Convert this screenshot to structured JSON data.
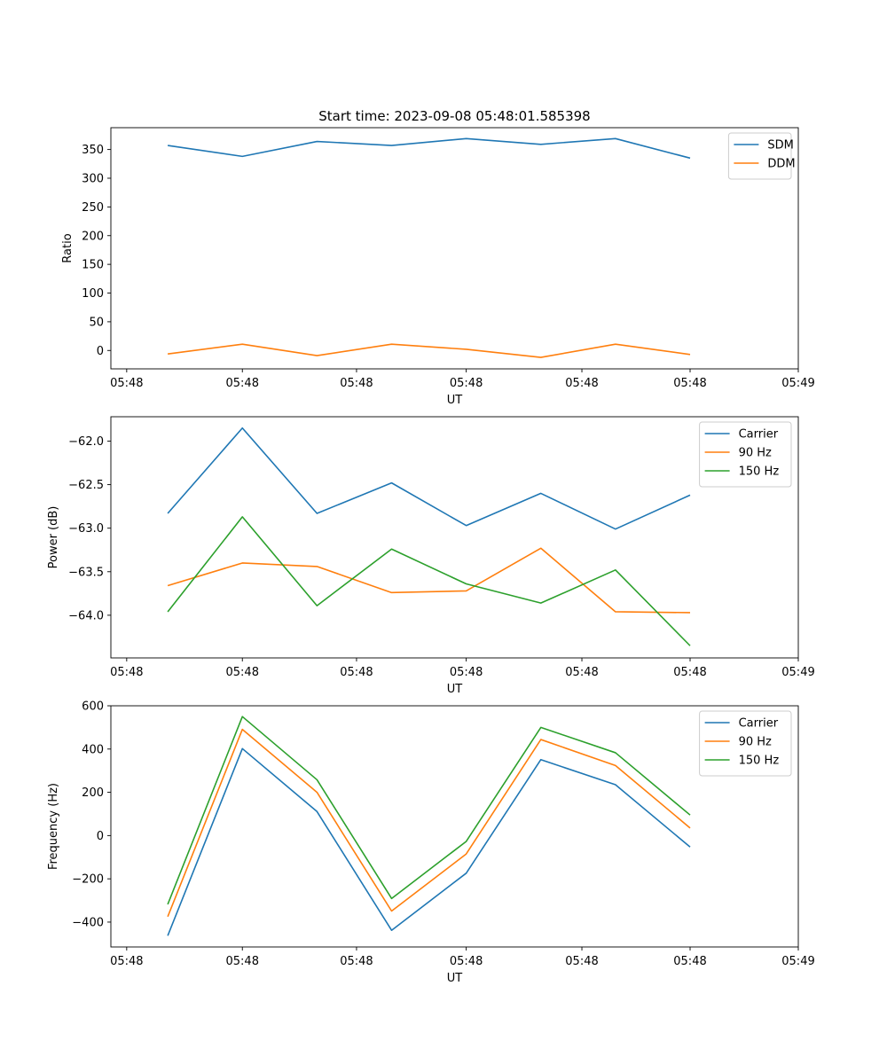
{
  "chart_data": [
    {
      "type": "line",
      "title": "Start time: 2023-09-08 05:48:01.585398",
      "xlabel": "UT",
      "ylabel": "Ratio",
      "x": [
        1,
        2,
        3,
        4,
        5,
        6,
        7,
        8
      ],
      "xlim": [
        0.238,
        9.45
      ],
      "xticks": [
        0.45,
        2,
        3.53,
        5,
        6.55,
        8,
        9.45
      ],
      "xtick_labels": [
        "05:48",
        "05:48",
        "05:48",
        "05:48",
        "05:48",
        "05:48",
        "05:49"
      ],
      "ylim": [
        -32,
        388
      ],
      "yticks": [
        0,
        50,
        100,
        150,
        200,
        250,
        300,
        350
      ],
      "ytick_labels": [
        "0",
        "50",
        "100",
        "150",
        "200",
        "250",
        "300",
        "350"
      ],
      "legend": "top-right",
      "series": [
        {
          "name": "SDM",
          "color": "#1f77b4",
          "values": [
            357,
            338,
            364,
            357,
            369,
            359,
            369,
            335
          ]
        },
        {
          "name": "DDM",
          "color": "#ff7f0e",
          "values": [
            -6,
            11,
            -9,
            11,
            2,
            -12,
            11,
            -7
          ]
        }
      ]
    },
    {
      "type": "line",
      "xlabel": "UT",
      "ylabel": "Power (dB)",
      "x": [
        1,
        2,
        3,
        4,
        5,
        6,
        7,
        8
      ],
      "xlim": [
        0.238,
        9.45
      ],
      "xticks": [
        0.45,
        2,
        3.53,
        5,
        6.55,
        8,
        9.45
      ],
      "xtick_labels": [
        "05:48",
        "05:48",
        "05:48",
        "05:48",
        "05:48",
        "05:48",
        "05:49"
      ],
      "ylim": [
        -64.49,
        -61.72
      ],
      "yticks": [
        -64.0,
        -63.5,
        -63.0,
        -62.5,
        -62.0
      ],
      "ytick_labels": [
        "−64.0",
        "−63.5",
        "−63.0",
        "−62.5",
        "−62.0"
      ],
      "legend": "top-right",
      "series": [
        {
          "name": "Carrier",
          "color": "#1f77b4",
          "values": [
            -62.83,
            -61.85,
            -62.83,
            -62.48,
            -62.97,
            -62.6,
            -63.01,
            -62.62
          ]
        },
        {
          "name": "90 Hz",
          "color": "#ff7f0e",
          "values": [
            -63.66,
            -63.4,
            -63.44,
            -63.74,
            -63.72,
            -63.23,
            -63.96,
            -63.97
          ]
        },
        {
          "name": "150 Hz",
          "color": "#2ca02c",
          "values": [
            -63.96,
            -62.87,
            -63.89,
            -63.24,
            -63.64,
            -63.86,
            -63.48,
            -64.35
          ]
        }
      ]
    },
    {
      "type": "line",
      "xlabel": "UT",
      "ylabel": "Frequency (Hz)",
      "x": [
        1,
        2,
        3,
        4,
        5,
        6,
        7,
        8
      ],
      "xlim": [
        0.238,
        9.45
      ],
      "xticks": [
        0.45,
        2,
        3.53,
        5,
        6.55,
        8,
        9.45
      ],
      "xtick_labels": [
        "05:48",
        "05:48",
        "05:48",
        "05:48",
        "05:48",
        "05:48",
        "05:49"
      ],
      "ylim": [
        -515,
        600
      ],
      "yticks": [
        -400,
        -200,
        0,
        200,
        400,
        600
      ],
      "ytick_labels": [
        "−400",
        "−200",
        "0",
        "200",
        "400",
        "600"
      ],
      "legend": "top-right",
      "series": [
        {
          "name": "Carrier",
          "color": "#1f77b4",
          "values": [
            -463,
            402,
            111,
            -438,
            -174,
            351,
            235,
            -53
          ]
        },
        {
          "name": "90 Hz",
          "color": "#ff7f0e",
          "values": [
            -375,
            491,
            200,
            -349,
            -85,
            444,
            324,
            35
          ]
        },
        {
          "name": "150 Hz",
          "color": "#2ca02c",
          "values": [
            -318,
            550,
            258,
            -291,
            -27,
            500,
            383,
            95
          ]
        }
      ]
    }
  ]
}
